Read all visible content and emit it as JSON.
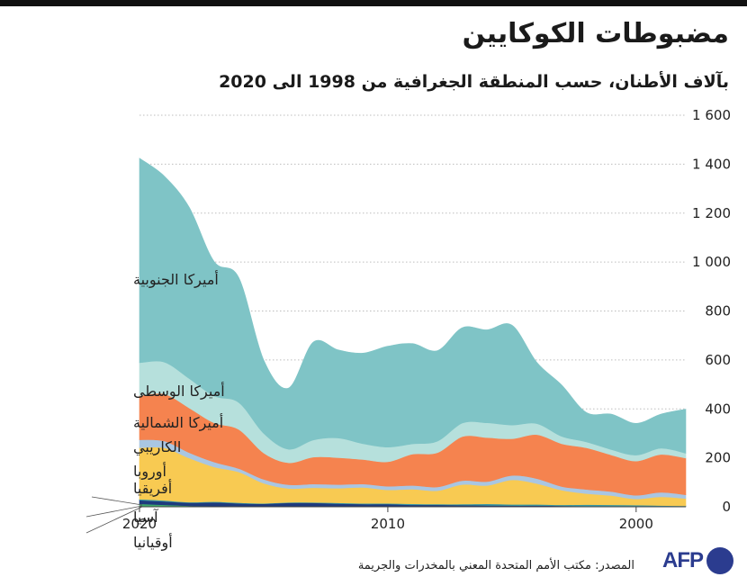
{
  "title": "مضبوطات الكوكايين",
  "subtitle": "بآلاف الأطنان، حسب المنطقة الجغرافية من 1998 الى 2020",
  "source": "المصدر: مكتب الأمم المتحدة المعني بالمخدرات والجريمة",
  "logo_text": "AFP",
  "colors": {
    "south_america": "#7fc4c6",
    "central_america": "#b6e0dc",
    "north_america": "#f5834f",
    "caribbean": "#a9c6e2",
    "europe": "#f8ca52",
    "africa": "#3b98a3",
    "asia": "#1e3a7d",
    "oceania": "#3fa86d"
  },
  "chart_data": {
    "type": "area",
    "stacked": true,
    "x_direction": "right-to-left",
    "x": [
      1998,
      1999,
      2000,
      2001,
      2002,
      2003,
      2004,
      2005,
      2006,
      2007,
      2008,
      2009,
      2010,
      2011,
      2012,
      2013,
      2014,
      2015,
      2016,
      2017,
      2018,
      2019,
      2020
    ],
    "xticks": [
      "2000",
      "2010",
      "2020"
    ],
    "yticks": [
      "0",
      "200",
      "400",
      "600",
      "800",
      "1 000",
      "1 200",
      "1 400",
      "1 600"
    ],
    "ylim": [
      0,
      1600
    ],
    "series": [
      {
        "name": "أوقيانيا",
        "values": [
          0,
          0,
          0,
          0,
          0,
          0,
          0,
          0,
          0,
          0,
          0,
          0,
          1,
          1,
          1,
          2,
          1,
          2,
          2,
          3,
          4,
          8,
          12
        ]
      },
      {
        "name": "آسيا",
        "values": [
          2,
          2,
          3,
          3,
          3,
          4,
          5,
          5,
          6,
          7,
          8,
          8,
          10,
          10,
          12,
          14,
          15,
          10,
          12,
          15,
          13,
          14,
          15
        ]
      },
      {
        "name": "أفريقيا",
        "values": [
          2,
          3,
          4,
          5,
          6,
          4,
          5,
          5,
          6,
          4,
          3,
          4,
          3,
          3,
          3,
          2,
          2,
          2,
          3,
          3,
          2,
          4,
          4
        ]
      },
      {
        "name": "أوروبا",
        "values": [
          30,
          36,
          25,
          38,
          45,
          60,
          85,
          100,
          75,
          80,
          55,
          60,
          55,
          65,
          60,
          60,
          57,
          82,
          125,
          142,
          180,
          215,
          210
        ]
      },
      {
        "name": "الكاريبي",
        "values": [
          15,
          18,
          15,
          16,
          17,
          15,
          20,
          18,
          16,
          16,
          15,
          15,
          15,
          14,
          15,
          15,
          15,
          16,
          14,
          20,
          22,
          28,
          33
        ]
      },
      {
        "name": "أميركا الشمالية",
        "values": [
          150,
          155,
          140,
          150,
          170,
          175,
          180,
          150,
          180,
          180,
          140,
          128,
          100,
          100,
          110,
          110,
          90,
          108,
          160,
          160,
          183,
          192,
          180
        ]
      },
      {
        "name": "أميركا الوسطى",
        "values": [
          20,
          25,
          24,
          22,
          24,
          30,
          45,
          56,
          60,
          55,
          47,
          42,
          60,
          65,
          80,
          70,
          55,
          80,
          110,
          110,
          120,
          130,
          135
        ]
      },
      {
        "name": "أميركا الجنوبية",
        "values": [
          180,
          140,
          130,
          145,
          120,
          210,
          250,
          408,
          380,
          390,
          370,
          410,
          412,
          370,
          360,
          400,
          250,
          300,
          510,
          550,
          700,
          760,
          835
        ]
      }
    ]
  }
}
